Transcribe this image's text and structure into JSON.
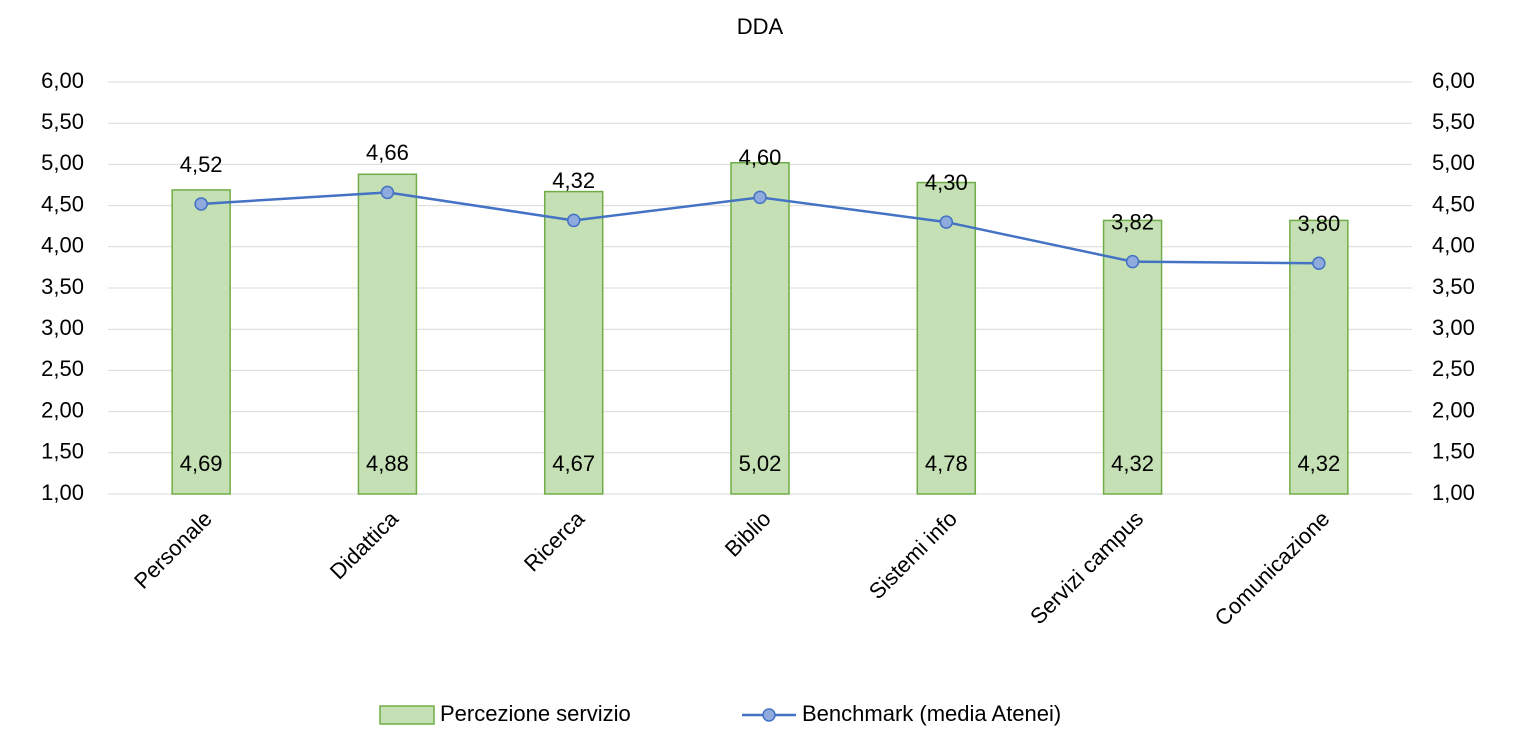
{
  "chart_data": {
    "type": "combo",
    "title": "DDA",
    "categories": [
      "Personale",
      "Didattica",
      "Ricerca",
      "Biblio",
      "Sistemi info",
      "Servizi campus",
      "Comunicazione"
    ],
    "series": [
      {
        "name": "Percezione servizio",
        "type": "bar",
        "color": "#c5e0b4",
        "edgecolor": "#70ad47",
        "values": [
          4.69,
          4.88,
          4.67,
          5.02,
          4.78,
          4.32,
          4.32
        ],
        "value_labels": [
          "4,69",
          "4,88",
          "4,67",
          "5,02",
          "4,78",
          "4,32",
          "4,32"
        ]
      },
      {
        "name": "Benchmark (media Atenei)",
        "type": "line",
        "axis": "y2",
        "color": "#4472c4",
        "marker_color": "#8faadc",
        "values": [
          4.52,
          4.66,
          4.32,
          4.6,
          4.3,
          3.82,
          3.8
        ],
        "value_labels": [
          "4,52",
          "4,66",
          "4,32",
          "4,60",
          "4,30",
          "3,82",
          "3,80"
        ]
      }
    ],
    "ylim": [
      1,
      6
    ],
    "yticks": [
      {
        "value": 1,
        "label": "1,00"
      },
      {
        "value": 1.5,
        "label": "1,50"
      },
      {
        "value": 2,
        "label": "2,00"
      },
      {
        "value": 2.5,
        "label": "2,50"
      },
      {
        "value": 3,
        "label": "3,00"
      },
      {
        "value": 3.5,
        "label": "3,50"
      },
      {
        "value": 4,
        "label": "4,00"
      },
      {
        "value": 4.5,
        "label": "4,50"
      },
      {
        "value": 5,
        "label": "5,00"
      },
      {
        "value": 5.5,
        "label": "5,50"
      },
      {
        "value": 6,
        "label": "6,00"
      }
    ],
    "y2lim": [
      1,
      6
    ],
    "y2ticks": [
      {
        "value": 1,
        "label": "1,00"
      },
      {
        "value": 1.5,
        "label": "1,50"
      },
      {
        "value": 2,
        "label": "2,00"
      },
      {
        "value": 2.5,
        "label": "2,50"
      },
      {
        "value": 3,
        "label": "3,00"
      },
      {
        "value": 3.5,
        "label": "3,50"
      },
      {
        "value": 4,
        "label": "4,00"
      },
      {
        "value": 4.5,
        "label": "4,50"
      },
      {
        "value": 5,
        "label": "5,00"
      },
      {
        "value": 5.5,
        "label": "5,50"
      },
      {
        "value": 6,
        "label": "6,00"
      }
    ],
    "grid": true,
    "legend": "bottom"
  }
}
